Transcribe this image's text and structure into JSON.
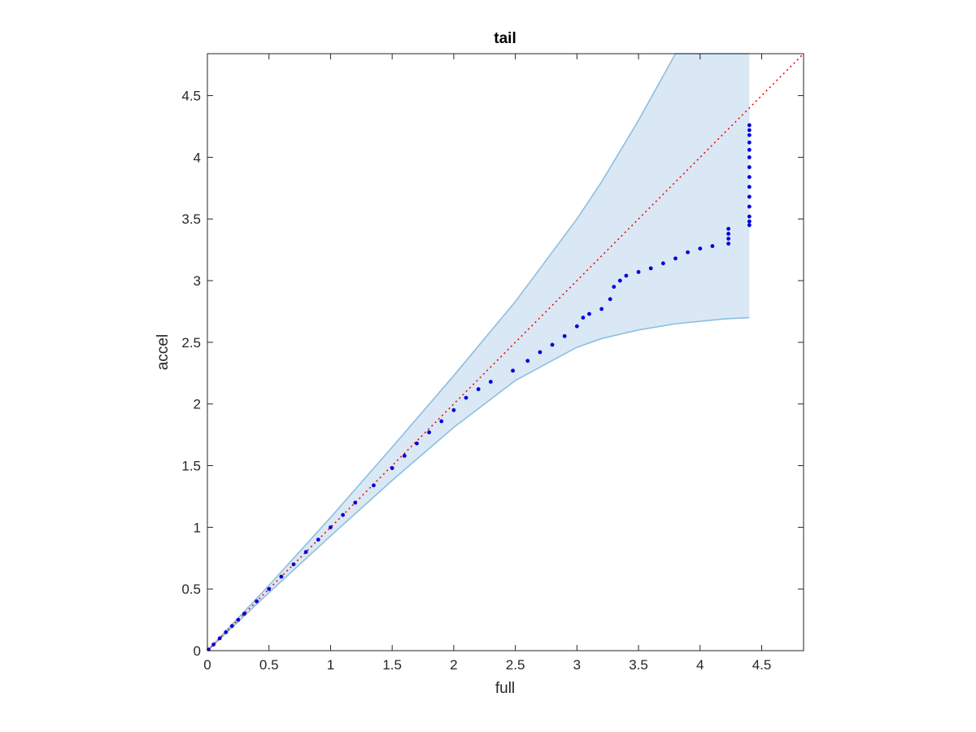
{
  "chart_data": {
    "type": "scatter",
    "title": "tail",
    "xlabel": "full",
    "ylabel": "accel",
    "xlim": [
      0,
      4.84
    ],
    "ylim": [
      0,
      4.84
    ],
    "xticks": [
      0,
      0.5,
      1,
      1.5,
      2,
      2.5,
      3,
      3.5,
      4,
      4.5
    ],
    "yticks": [
      0,
      0.5,
      1,
      1.5,
      2,
      2.5,
      3,
      3.5,
      4,
      4.5
    ],
    "xtick_labels": [
      "0",
      "0.5",
      "1",
      "1.5",
      "2",
      "2.5",
      "3",
      "3.5",
      "4",
      "4.5"
    ],
    "ytick_labels": [
      "0",
      "0.5",
      "1",
      "1.5",
      "2",
      "2.5",
      "3",
      "3.5",
      "4",
      "4.5"
    ],
    "grid": false,
    "reference_line": {
      "style": "dotted",
      "color": "#ff0000",
      "x": [
        0,
        4.84
      ],
      "y": [
        0,
        4.84
      ]
    },
    "band": {
      "fill": "#d9e8f4",
      "edge": "#8dbfe0",
      "x": [
        0,
        0.5,
        1.0,
        1.5,
        2.0,
        2.5,
        3.0,
        3.2,
        3.5,
        3.8,
        4.0,
        4.2,
        4.4
      ],
      "upper": [
        0,
        0.53,
        1.08,
        1.65,
        2.23,
        2.83,
        3.5,
        3.8,
        4.3,
        4.84,
        4.84,
        4.84,
        4.84
      ],
      "lower": [
        0,
        0.47,
        0.93,
        1.38,
        1.81,
        2.19,
        2.46,
        2.53,
        2.6,
        2.65,
        2.67,
        2.69,
        2.7
      ]
    },
    "series": [
      {
        "color": "#0000dd",
        "x": [
          0.01,
          0.05,
          0.1,
          0.15,
          0.2,
          0.25,
          0.3,
          0.4,
          0.5,
          0.6,
          0.7,
          0.8,
          0.9,
          1.0,
          1.1,
          1.2,
          1.35,
          1.5,
          1.6,
          1.7,
          1.8,
          1.9,
          2.0,
          2.1,
          2.2,
          2.3,
          2.48,
          2.6,
          2.7,
          2.8,
          2.9,
          3.0,
          3.05,
          3.1,
          3.2,
          3.27,
          3.3,
          3.35,
          3.4,
          3.5,
          3.6,
          3.7,
          3.8,
          3.9,
          4.0,
          4.1,
          4.23,
          4.23,
          4.23,
          4.23,
          4.4,
          4.4,
          4.4,
          4.4,
          4.4,
          4.4,
          4.4,
          4.4,
          4.4,
          4.4,
          4.4,
          4.4,
          4.4,
          4.4
        ],
        "y": [
          0.01,
          0.05,
          0.1,
          0.15,
          0.2,
          0.25,
          0.3,
          0.4,
          0.5,
          0.6,
          0.7,
          0.8,
          0.9,
          1.0,
          1.1,
          1.2,
          1.34,
          1.48,
          1.58,
          1.68,
          1.77,
          1.86,
          1.95,
          2.05,
          2.12,
          2.18,
          2.27,
          2.35,
          2.42,
          2.48,
          2.55,
          2.63,
          2.7,
          2.73,
          2.77,
          2.85,
          2.95,
          3.0,
          3.04,
          3.07,
          3.1,
          3.14,
          3.18,
          3.23,
          3.26,
          3.28,
          3.3,
          3.34,
          3.38,
          3.42,
          3.45,
          3.52,
          3.6,
          3.68,
          3.76,
          3.84,
          3.92,
          4.0,
          4.06,
          4.12,
          4.18,
          4.22,
          4.26,
          3.48
        ]
      }
    ]
  }
}
